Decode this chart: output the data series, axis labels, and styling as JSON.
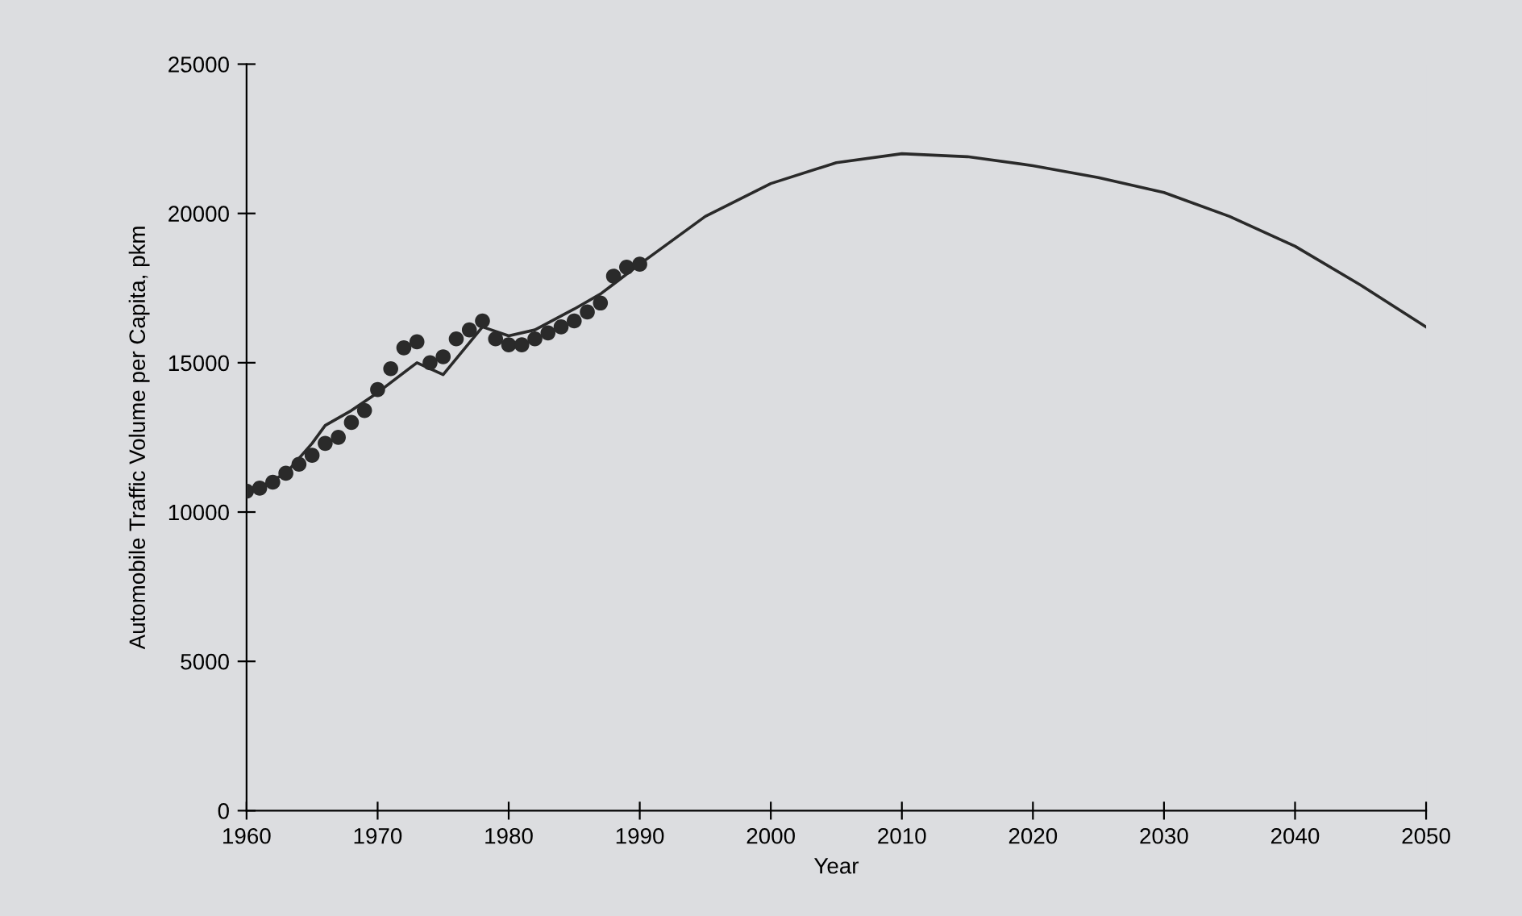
{
  "chart_data": {
    "type": "line",
    "xlabel": "Year",
    "ylabel": "Automobile Traffic Volume per Capita, pkm",
    "xlim": [
      1960,
      2050
    ],
    "ylim": [
      0,
      25000
    ],
    "xticks": [
      1960,
      1970,
      1980,
      1990,
      2000,
      2010,
      2020,
      2030,
      2040,
      2050
    ],
    "yticks": [
      0,
      5000,
      10000,
      15000,
      20000,
      25000
    ],
    "grid": false,
    "legend": false,
    "series": [
      {
        "type": "scatter",
        "marker": "circle",
        "color": "#2a2a2a",
        "x": [
          1960,
          1961,
          1962,
          1963,
          1964,
          1965,
          1966,
          1967,
          1968,
          1969,
          1970,
          1971,
          1972,
          1973,
          1974,
          1975,
          1976,
          1977,
          1978,
          1979,
          1980,
          1981,
          1982,
          1983,
          1984,
          1985,
          1986,
          1987,
          1988,
          1989,
          1990
        ],
        "values": [
          10700,
          10800,
          11000,
          11300,
          11600,
          11900,
          12300,
          12500,
          13000,
          13400,
          14100,
          14800,
          15500,
          15700,
          15000,
          15200,
          15800,
          16100,
          16400,
          15800,
          15600,
          15600,
          15800,
          16000,
          16200,
          16400,
          16700,
          17000,
          17900,
          18200,
          18300
        ]
      },
      {
        "marker": "none",
        "line_style": "solid",
        "color": "#2a2a2a",
        "x": [
          1960,
          1963,
          1965,
          1966,
          1968,
          1970,
          1973,
          1975,
          1978,
          1980,
          1982,
          1985,
          1987,
          1990,
          1995,
          2000,
          2005,
          2010,
          2015,
          2020,
          2025,
          2030,
          2035,
          2040,
          2045,
          2050
        ],
        "values": [
          10600,
          11300,
          12300,
          12900,
          13400,
          14000,
          15000,
          14600,
          16200,
          15900,
          16100,
          16800,
          17300,
          18300,
          19900,
          21000,
          21700,
          22000,
          21900,
          21600,
          21200,
          20700,
          19900,
          18900,
          17600,
          16200
        ]
      }
    ]
  }
}
